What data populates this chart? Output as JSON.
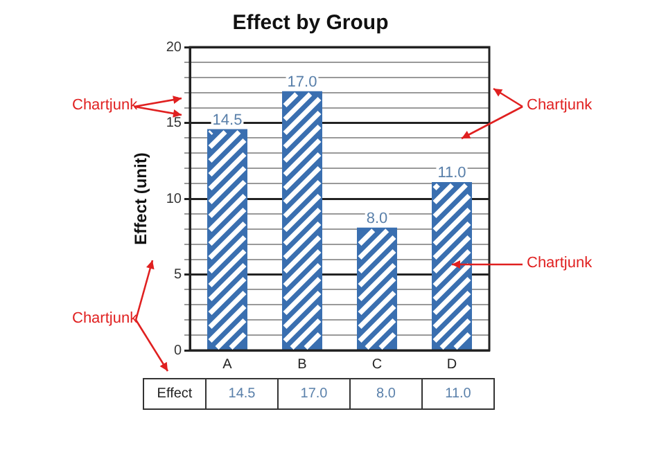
{
  "chart_data": {
    "type": "bar",
    "title": "Effect by Group",
    "ylabel": "Effect (unit)",
    "categories": [
      "A",
      "B",
      "C",
      "D"
    ],
    "series": [
      {
        "name": "Effect",
        "color": "#3a6fb0",
        "values": [
          14.5,
          17.0,
          8.0,
          11.0
        ],
        "value_labels": [
          "14.5",
          "17.0",
          "8.0",
          "11.0"
        ]
      }
    ],
    "ylim": [
      0,
      20
    ],
    "yticks": [
      0,
      {
        "value": 1,
        "label": null
      },
      {
        "value": 2,
        "label": null
      },
      {
        "value": 3,
        "label": null
      },
      {
        "value": 4,
        "label": null
      },
      5,
      {
        "value": 6,
        "label": null
      },
      {
        "value": 7,
        "label": null
      },
      {
        "value": 8,
        "label": null
      },
      {
        "value": 9,
        "label": null
      },
      10,
      {
        "value": 11,
        "label": null
      },
      {
        "value": 12,
        "label": null
      },
      {
        "value": 13,
        "label": null
      },
      {
        "value": 14,
        "label": null
      },
      15,
      {
        "value": 16,
        "label": null
      },
      {
        "value": 17,
        "label": null
      },
      {
        "value": 18,
        "label": null
      },
      {
        "value": 19,
        "label": null
      },
      20
    ],
    "grid": "y",
    "legend": false,
    "annotations": [
      "Chartjunk",
      "Chartjunk",
      "Chartjunk",
      "Chartjunk"
    ]
  }
}
